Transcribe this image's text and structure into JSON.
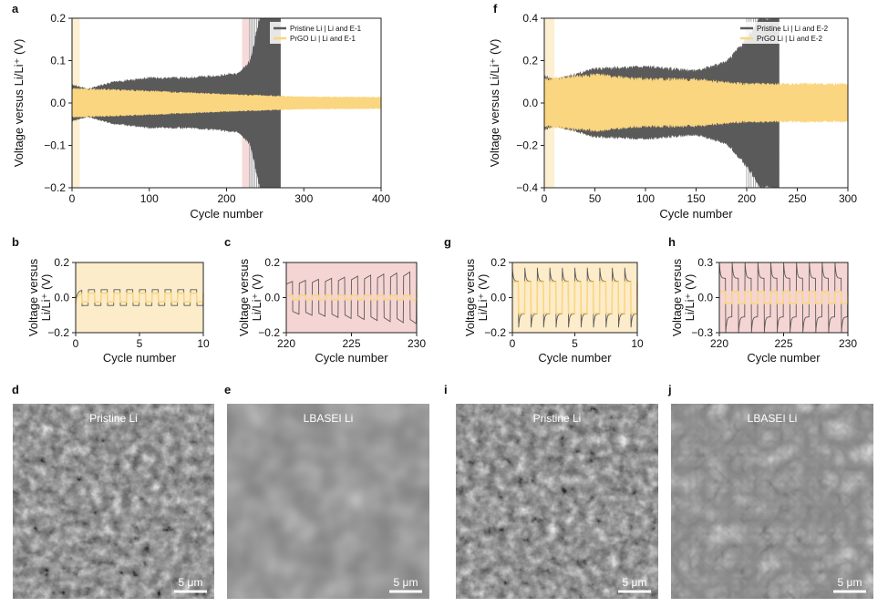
{
  "panel_labels": [
    "a",
    "b",
    "c",
    "d",
    "e",
    "f",
    "g",
    "h",
    "i",
    "j"
  ],
  "colors": {
    "pristine": "#5a5a5a",
    "prgo": "#fbd680",
    "early_shade": "#fcecca",
    "late_shade": "#f5d5d3"
  },
  "chart_data": [
    {
      "id": "a",
      "type": "line",
      "xlabel": "Cycle number",
      "ylabel": "Voltage versus Li/Li⁺ (V)",
      "xlim": [
        0,
        400
      ],
      "ylim": [
        -0.2,
        0.2
      ],
      "xticks": [
        0,
        100,
        200,
        300,
        400
      ],
      "yticks": [
        -0.2,
        -0.1,
        0.0,
        0.1,
        0.2
      ],
      "shaded": [
        {
          "from": 0,
          "to": 10,
          "color": "early"
        },
        {
          "from": 220,
          "to": 230,
          "color": "late"
        }
      ],
      "legend": {
        "placement": "top-right",
        "entries": [
          "Pristine Li | Li and E-1",
          "PrGO Li | Li and E-1"
        ]
      },
      "series": [
        {
          "name": "Pristine Li | Li and E-1",
          "color": "pristine",
          "envelope": [
            [
              0,
              0.04
            ],
            [
              20,
              0.03
            ],
            [
              50,
              0.045
            ],
            [
              100,
              0.055
            ],
            [
              150,
              0.055
            ],
            [
              190,
              0.06
            ],
            [
              215,
              0.065
            ],
            [
              230,
              0.09
            ],
            [
              245,
              0.2
            ],
            [
              270,
              0.2
            ]
          ],
          "end": 270
        },
        {
          "name": "PrGO Li | Li and E-1",
          "color": "prgo",
          "envelope": [
            [
              0,
              0.03
            ],
            [
              50,
              0.028
            ],
            [
              100,
              0.025
            ],
            [
              200,
              0.018
            ],
            [
              300,
              0.013
            ],
            [
              400,
              0.012
            ]
          ],
          "end": 400
        }
      ]
    },
    {
      "id": "f",
      "type": "line",
      "xlabel": "Cycle number",
      "ylabel": "Voltage versus Li/Li⁺ (V)",
      "xlim": [
        0,
        300
      ],
      "ylim": [
        -0.4,
        0.4
      ],
      "xticks": [
        0,
        50,
        100,
        150,
        200,
        250,
        300
      ],
      "yticks": [
        -0.4,
        -0.2,
        0.0,
        0.2,
        0.4
      ],
      "shaded": [
        {
          "from": 0,
          "to": 10,
          "color": "early"
        },
        {
          "from": 220,
          "to": 230,
          "color": "late"
        }
      ],
      "legend": {
        "placement": "top-right",
        "entries": [
          "Pristine Li | Li and E-2",
          "PrGO Li | Li and E-2"
        ]
      },
      "series": [
        {
          "name": "Pristine Li | Li and E-2",
          "color": "pristine",
          "envelope": [
            [
              0,
              0.12
            ],
            [
              10,
              0.1
            ],
            [
              50,
              0.15
            ],
            [
              100,
              0.16
            ],
            [
              150,
              0.14
            ],
            [
              180,
              0.18
            ],
            [
              200,
              0.28
            ],
            [
              215,
              0.38
            ],
            [
              232,
              0.4
            ]
          ],
          "end": 232
        },
        {
          "name": "PrGO Li | Li and E-2",
          "color": "prgo",
          "envelope": [
            [
              0,
              0.1
            ],
            [
              50,
              0.12
            ],
            [
              100,
              0.1
            ],
            [
              150,
              0.1
            ],
            [
              200,
              0.08
            ],
            [
              250,
              0.08
            ],
            [
              300,
              0.08
            ]
          ],
          "end": 300
        }
      ]
    },
    {
      "id": "b",
      "type": "line",
      "xlabel": "Cycle number",
      "ylabel": "Voltage versus Li/Li⁺ (V)",
      "xlim": [
        0,
        10
      ],
      "ylim": [
        -0.2,
        0.2
      ],
      "xticks": [
        0,
        5,
        10
      ],
      "yticks": [
        -0.2,
        0,
        0.2
      ],
      "background": "early",
      "series": [
        {
          "name": "",
          "color": "pristine",
          "amplitude": 0.045
        },
        {
          "name": "",
          "color": "prgo",
          "amplitude": 0.025
        }
      ]
    },
    {
      "id": "c",
      "type": "line",
      "xlabel": "Cycle number",
      "ylabel": "Voltage versus Li/Li⁺ (V)",
      "xlim": [
        220,
        230
      ],
      "ylim": [
        -0.2,
        0.2
      ],
      "xticks": [
        220,
        225,
        230
      ],
      "yticks": [
        -0.2,
        0,
        0.2
      ],
      "background": "late",
      "series": [
        {
          "name": "",
          "color": "pristine",
          "amplitude_start": 0.09,
          "amplitude_end": 0.15
        },
        {
          "name": "",
          "color": "prgo",
          "amplitude": 0.012
        }
      ]
    },
    {
      "id": "g",
      "type": "line",
      "xlabel": "Cycle number",
      "ylabel": "Voltage versus Li/Li⁺ (V)",
      "xlim": [
        0,
        10
      ],
      "ylim": [
        -0.2,
        0.2
      ],
      "xticks": [
        0,
        5,
        10
      ],
      "yticks": [
        -0.2,
        0,
        0.2
      ],
      "background": "early",
      "series": [
        {
          "name": "",
          "color": "pristine",
          "amplitude": 0.17
        },
        {
          "name": "",
          "color": "prgo",
          "amplitude": 0.09
        }
      ]
    },
    {
      "id": "h",
      "type": "line",
      "xlabel": "Cycle number",
      "ylabel": "Voltage versus Li/Li⁺ (V)",
      "xlim": [
        220,
        230
      ],
      "ylim": [
        -0.3,
        0.3
      ],
      "xticks": [
        220,
        225,
        230
      ],
      "yticks": [
        -0.3,
        0,
        0.3
      ],
      "background": "late",
      "series": [
        {
          "name": "",
          "color": "pristine",
          "amplitude": 0.3
        },
        {
          "name": "",
          "color": "prgo",
          "amplitude": 0.05
        }
      ]
    }
  ],
  "micrographs": [
    {
      "id": "d",
      "title": "Pristine Li",
      "scale": "5 μm",
      "texture": "rough"
    },
    {
      "id": "e",
      "title": "LBASEI Li",
      "scale": "5 μm",
      "texture": "smooth"
    },
    {
      "id": "i",
      "title": "Pristine Li",
      "scale": "5 μm",
      "texture": "rough"
    },
    {
      "id": "j",
      "title": "LBASEI Li",
      "scale": "5 μm",
      "texture": "plates"
    }
  ]
}
